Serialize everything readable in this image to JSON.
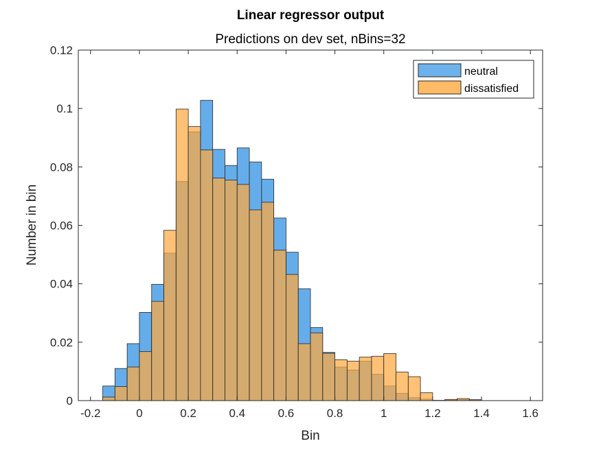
{
  "chart_data": {
    "type": "bar",
    "title": "Linear regressor output",
    "subtitle": "Predictions on dev set, nBins=32",
    "xlabel": "Bin",
    "ylabel": "Number in bin",
    "xlim": [
      -0.25,
      1.65
    ],
    "ylim": [
      0,
      0.12
    ],
    "xticks": [
      -0.2,
      0,
      0.2,
      0.4,
      0.6,
      0.8,
      1,
      1.2,
      1.4,
      1.6
    ],
    "xtick_labels": [
      "-0.2",
      "0",
      "0.2",
      "0.4",
      "0.6",
      "0.8",
      "1",
      "1.2",
      "1.4",
      "1.6"
    ],
    "yticks": [
      0,
      0.02,
      0.04,
      0.06,
      0.08,
      0.1,
      0.12
    ],
    "ytick_labels": [
      "0",
      "0.02",
      "0.04",
      "0.06",
      "0.08",
      "0.1",
      "0.12"
    ],
    "bin_start": -0.15,
    "bin_width": 0.05,
    "legend_position": "top-right",
    "series": [
      {
        "name": "neutral",
        "color": "#4a9fe6",
        "values": [
          0.005,
          0.011,
          0.0195,
          0.0302,
          0.0398,
          0.0505,
          0.075,
          0.092,
          0.1028,
          0.086,
          0.0805,
          0.0865,
          0.0817,
          0.0758,
          0.0625,
          0.0508,
          0.0383,
          0.025,
          0.0165,
          0.0115,
          0.0105,
          0.0135,
          0.009,
          0.005,
          0.0025,
          0.001,
          0.0005,
          0.0,
          0.0002,
          0.0004,
          0.0003,
          0.0
        ]
      },
      {
        "name": "dissatisfied",
        "color": "#ffa940",
        "values": [
          0.0012,
          0.0048,
          0.0115,
          0.0168,
          0.034,
          0.0583,
          0.0998,
          0.0938,
          0.0858,
          0.0762,
          0.0755,
          0.074,
          0.0653,
          0.0679,
          0.0515,
          0.0432,
          0.0195,
          0.0232,
          0.0162,
          0.014,
          0.0135,
          0.0149,
          0.0152,
          0.0161,
          0.0098,
          0.0082,
          0.0027,
          0.0001,
          0.0004,
          0.0007,
          0.0003,
          0.0
        ]
      }
    ]
  }
}
